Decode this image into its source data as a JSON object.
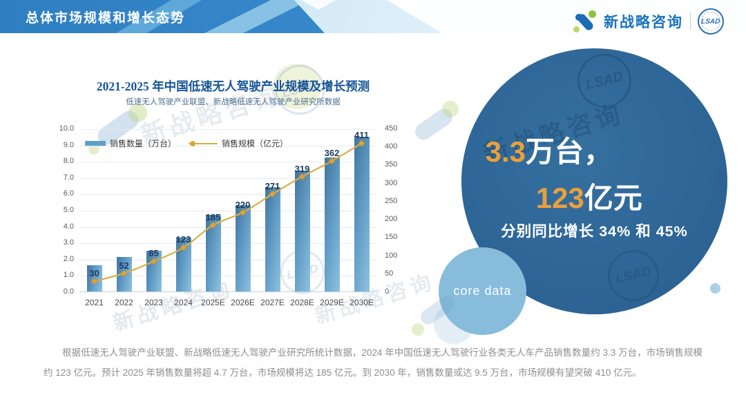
{
  "header": {
    "title": "总体市场规模和增长态势",
    "brand": {
      "name": "新战略咨询",
      "badge": "LSAD"
    }
  },
  "chart": {
    "title": "2021-2025 年中国低速无人驾驶产业规模及增长预测",
    "subtitle": "低速无人驾驶产业联盟、新战略低速无人驾驶产业研究所数据"
  },
  "chart_data": {
    "type": "bar+line",
    "categories": [
      "2021",
      "2022",
      "2023",
      "2024",
      "2025E",
      "2026E",
      "2027E",
      "2028E",
      "2029E",
      "2030E"
    ],
    "series": [
      {
        "name": "销售数量（万台）",
        "type": "bar",
        "axis": "left",
        "color": "#5f9fc9",
        "gradient": [
          "#41749f",
          "#8ec2df"
        ],
        "values": [
          1.6,
          2.1,
          2.5,
          3.3,
          4.7,
          5.3,
          6.4,
          7.4,
          8.2,
          9.5
        ]
      },
      {
        "name": "销售规模（亿元）",
        "type": "line",
        "axis": "right",
        "color": "#d9ae45",
        "marker": "diamond",
        "label_color": "#1d3a5f",
        "values": [
          30,
          52,
          85,
          123,
          185,
          220,
          271,
          319,
          362,
          411
        ],
        "labels_shown": true
      }
    ],
    "left_axis": {
      "min": 0,
      "max": 10,
      "step": 1,
      "tick_labels": [
        "10.0",
        "9.0",
        "8.0",
        "7.0",
        "6.0",
        "5.0",
        "4.0",
        "3.0",
        "2.0",
        "1.0",
        "0.0"
      ]
    },
    "right_axis": {
      "min": 0,
      "max": 450,
      "step": 50,
      "tick_labels": [
        "450",
        "400",
        "350",
        "300",
        "250",
        "200",
        "150",
        "100",
        "50",
        "0"
      ]
    },
    "grid": true,
    "legend_position": "top-left"
  },
  "highlight": {
    "value1": "3.3",
    "unit1": "万台，",
    "value2": "123",
    "unit2": "亿元",
    "line3": "分别同比增长 34% 和 45%",
    "tag": "core data",
    "colors": {
      "circle": "#2e6697",
      "accent": "#e9a03c",
      "core_circle": "#87bcdb"
    }
  },
  "footer_text": "根据低速无人驾驶产业联盟、新战略低速无人驾驶产业研究所统计数据，2024 年中国低速无人驾驶行业各类无人车产品销售数量约 3.3 万台，市场销售规模约 123 亿元。预计 2025 年销售数量将超 4.7 万台，市场规模将达 185 亿元。到 2030 年，销售数量或达 9.5 万台，市场规模有望突破 410 亿元。",
  "watermark": {
    "text": "新战略咨询",
    "badge": "LSAD"
  }
}
